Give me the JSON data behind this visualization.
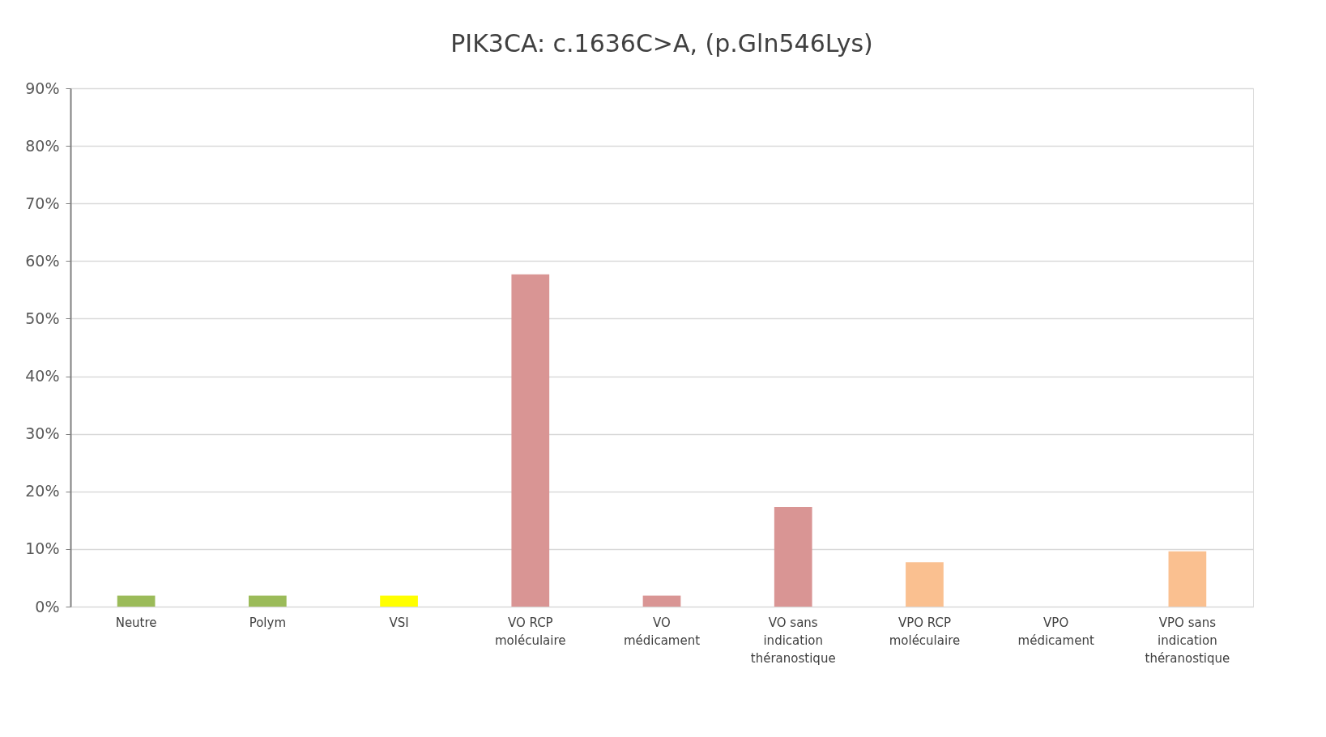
{
  "chart_data": {
    "type": "bar",
    "title": "PIK3CA: c.1636C>A, (p.Gln546Lys)",
    "categories": [
      "Neutre",
      "Polym",
      "VSI",
      "VO RCP moléculaire",
      "VO médicament",
      "VO sans indication théranostique",
      "VPO RCP moléculaire",
      "VPO médicament",
      "VPO sans indication théranostique"
    ],
    "values": [
      1.9,
      1.9,
      1.9,
      57.7,
      1.9,
      17.3,
      7.7,
      0,
      9.6
    ],
    "colors": [
      "#9bbb59",
      "#9bbb59",
      "#ffff00",
      "#d99594",
      "#d99594",
      "#d99594",
      "#fac090",
      "#fac090",
      "#fac090"
    ],
    "ylim": [
      0,
      90
    ],
    "yticks": [
      {
        "value": 0,
        "label": "0%"
      },
      {
        "value": 10,
        "label": "10%"
      },
      {
        "value": 20,
        "label": "20%"
      },
      {
        "value": 30,
        "label": "30%"
      },
      {
        "value": 40,
        "label": "40%"
      },
      {
        "value": 50,
        "label": "50%"
      },
      {
        "value": 60,
        "label": "60%"
      },
      {
        "value": 70,
        "label": "70%"
      },
      {
        "value": 80,
        "label": "80%"
      },
      {
        "value": 90,
        "label": "90%"
      }
    ],
    "grid": "y"
  }
}
